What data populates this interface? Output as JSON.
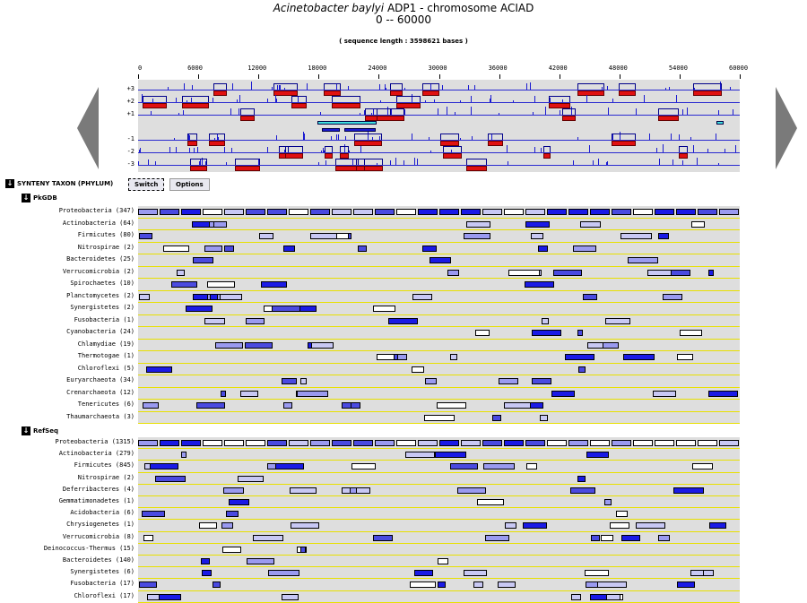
{
  "header": {
    "organism": "Acinetobacter baylyi",
    "rest": "ADP1 - chromosome ACIAD",
    "range": "0 -- 60000",
    "seq_length": "( sequence length : 3598621 bases )"
  },
  "scale": [
    "0",
    "6000",
    "12000",
    "18000",
    "24000",
    "30000",
    "36000",
    "42000",
    "48000",
    "54000",
    "60000"
  ],
  "frames": [
    "+3",
    "+2",
    "+1",
    "-1",
    "-2",
    "-3"
  ],
  "toolbar": {
    "section_title": "SYNTENY TAXON (PHYLUM)",
    "switch_label": "Switch",
    "options_label": "Options"
  },
  "pkgdb": {
    "title": "PkGDB",
    "rows": [
      "Proteobacteria (347)",
      "Actinobacteria (64)",
      "Firmicutes (80)",
      "Nitrospirae (2)",
      "Bacteroidetes (25)",
      "Verrucomicrobia (2)",
      "Spirochaetes (10)",
      "Planctomycetes (2)",
      "Synergistetes (2)",
      "Fusobacteria (1)",
      "Cyanobacteria (24)",
      "Chlamydiae (19)",
      "Thermotogae (1)",
      "Chloroflexi (5)",
      "Euryarchaeota (34)",
      "Crenarchaeota (12)",
      "Tenericutes (6)",
      "Thaumarchaeota (3)"
    ]
  },
  "refseq": {
    "title": "RefSeq",
    "rows": [
      "Proteobacteria (1315)",
      "Actinobacteria (279)",
      "Firmicutes (845)",
      "Nitrospirae (2)",
      "Deferribacteres (4)",
      "Gemmatimonadetes (1)",
      "Acidobacteria (6)",
      "Chrysiogenetes (1)",
      "Verrucomicrobia (8)",
      "Deinococcus-Thermus (15)",
      "Bacteroidetes (140)",
      "Synergistetes (6)",
      "Fusobacteria (17)",
      "Chloroflexi (17)"
    ]
  },
  "colors": {
    "dark": "#1a1ae6",
    "mid": "#4a4ae0",
    "light": "#9a9af0",
    "pale": "#c8c8f4",
    "white": "#ffffff"
  }
}
